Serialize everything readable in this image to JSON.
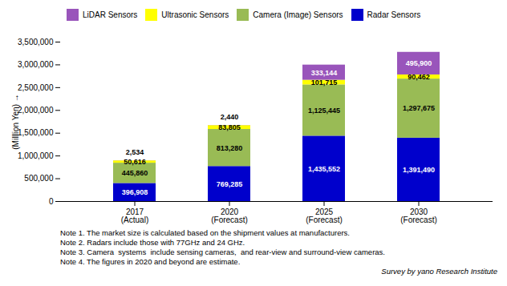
{
  "chart_data": {
    "type": "bar",
    "stacked": true,
    "data_labels": true,
    "grid": false,
    "legend": "upper left",
    "categories": [
      "2017\n(Actual)",
      "2020\n(Forecast)",
      "2025\n(Forecast)",
      "2030\n(Forecast)"
    ],
    "series": [
      {
        "name": "Radar Sensors",
        "color": "#0000cc",
        "values": [
          396908,
          769285,
          1435552,
          1391490
        ],
        "value_labels": [
          "396,908",
          "769,285",
          "1,435,552",
          "1,391,490"
        ]
      },
      {
        "name": "Camera (Image) Sensors",
        "color": "#99bb55",
        "values": [
          445860,
          813280,
          1125445,
          1297675
        ],
        "value_labels": [
          "445,860",
          "813,280",
          "1,125,445",
          "1,297,675"
        ]
      },
      {
        "name": "Ultrasonic Sensors",
        "color": "#ffff00",
        "values": [
          50616,
          83805,
          101715,
          90462
        ],
        "value_labels": [
          "50,616",
          "83,805",
          "101,715",
          "90,462"
        ]
      },
      {
        "name": "LiDAR Sensors",
        "color": "#9955bb",
        "values": [
          2534,
          2440,
          333144,
          495900
        ],
        "value_labels": [
          "2,534",
          "2,440",
          "333,144",
          "495,900"
        ]
      }
    ],
    "ylabel": "(Milllion Yen)",
    "ylim": [
      0,
      3500000
    ],
    "yticks": [
      0,
      {
        "value": 500000,
        "label": "500,000"
      },
      {
        "value": 1000000,
        "label": "1,000,000"
      },
      {
        "value": 1500000,
        "label": "1,500,000"
      },
      {
        "value": 2000000,
        "label": "2,000,000"
      },
      {
        "value": 2500000,
        "label": "2,500,000"
      },
      {
        "value": 3000000,
        "label": "3,000,000"
      },
      {
        "value": 3500000,
        "label": "3,500,000"
      }
    ],
    "notes": [
      "Note 1. The market size is calculated based on the shipment values at manufacturers.",
      "Note 2. Radars include those with 77GHz and 24 GHz.",
      "Note 3. Camera  systems  include sensing cameras,  and rear-view and surround-view cameras.",
      "Note 4. The figures in 2020 and beyond are estimate."
    ],
    "source": "Survey by yano Research Institute"
  }
}
